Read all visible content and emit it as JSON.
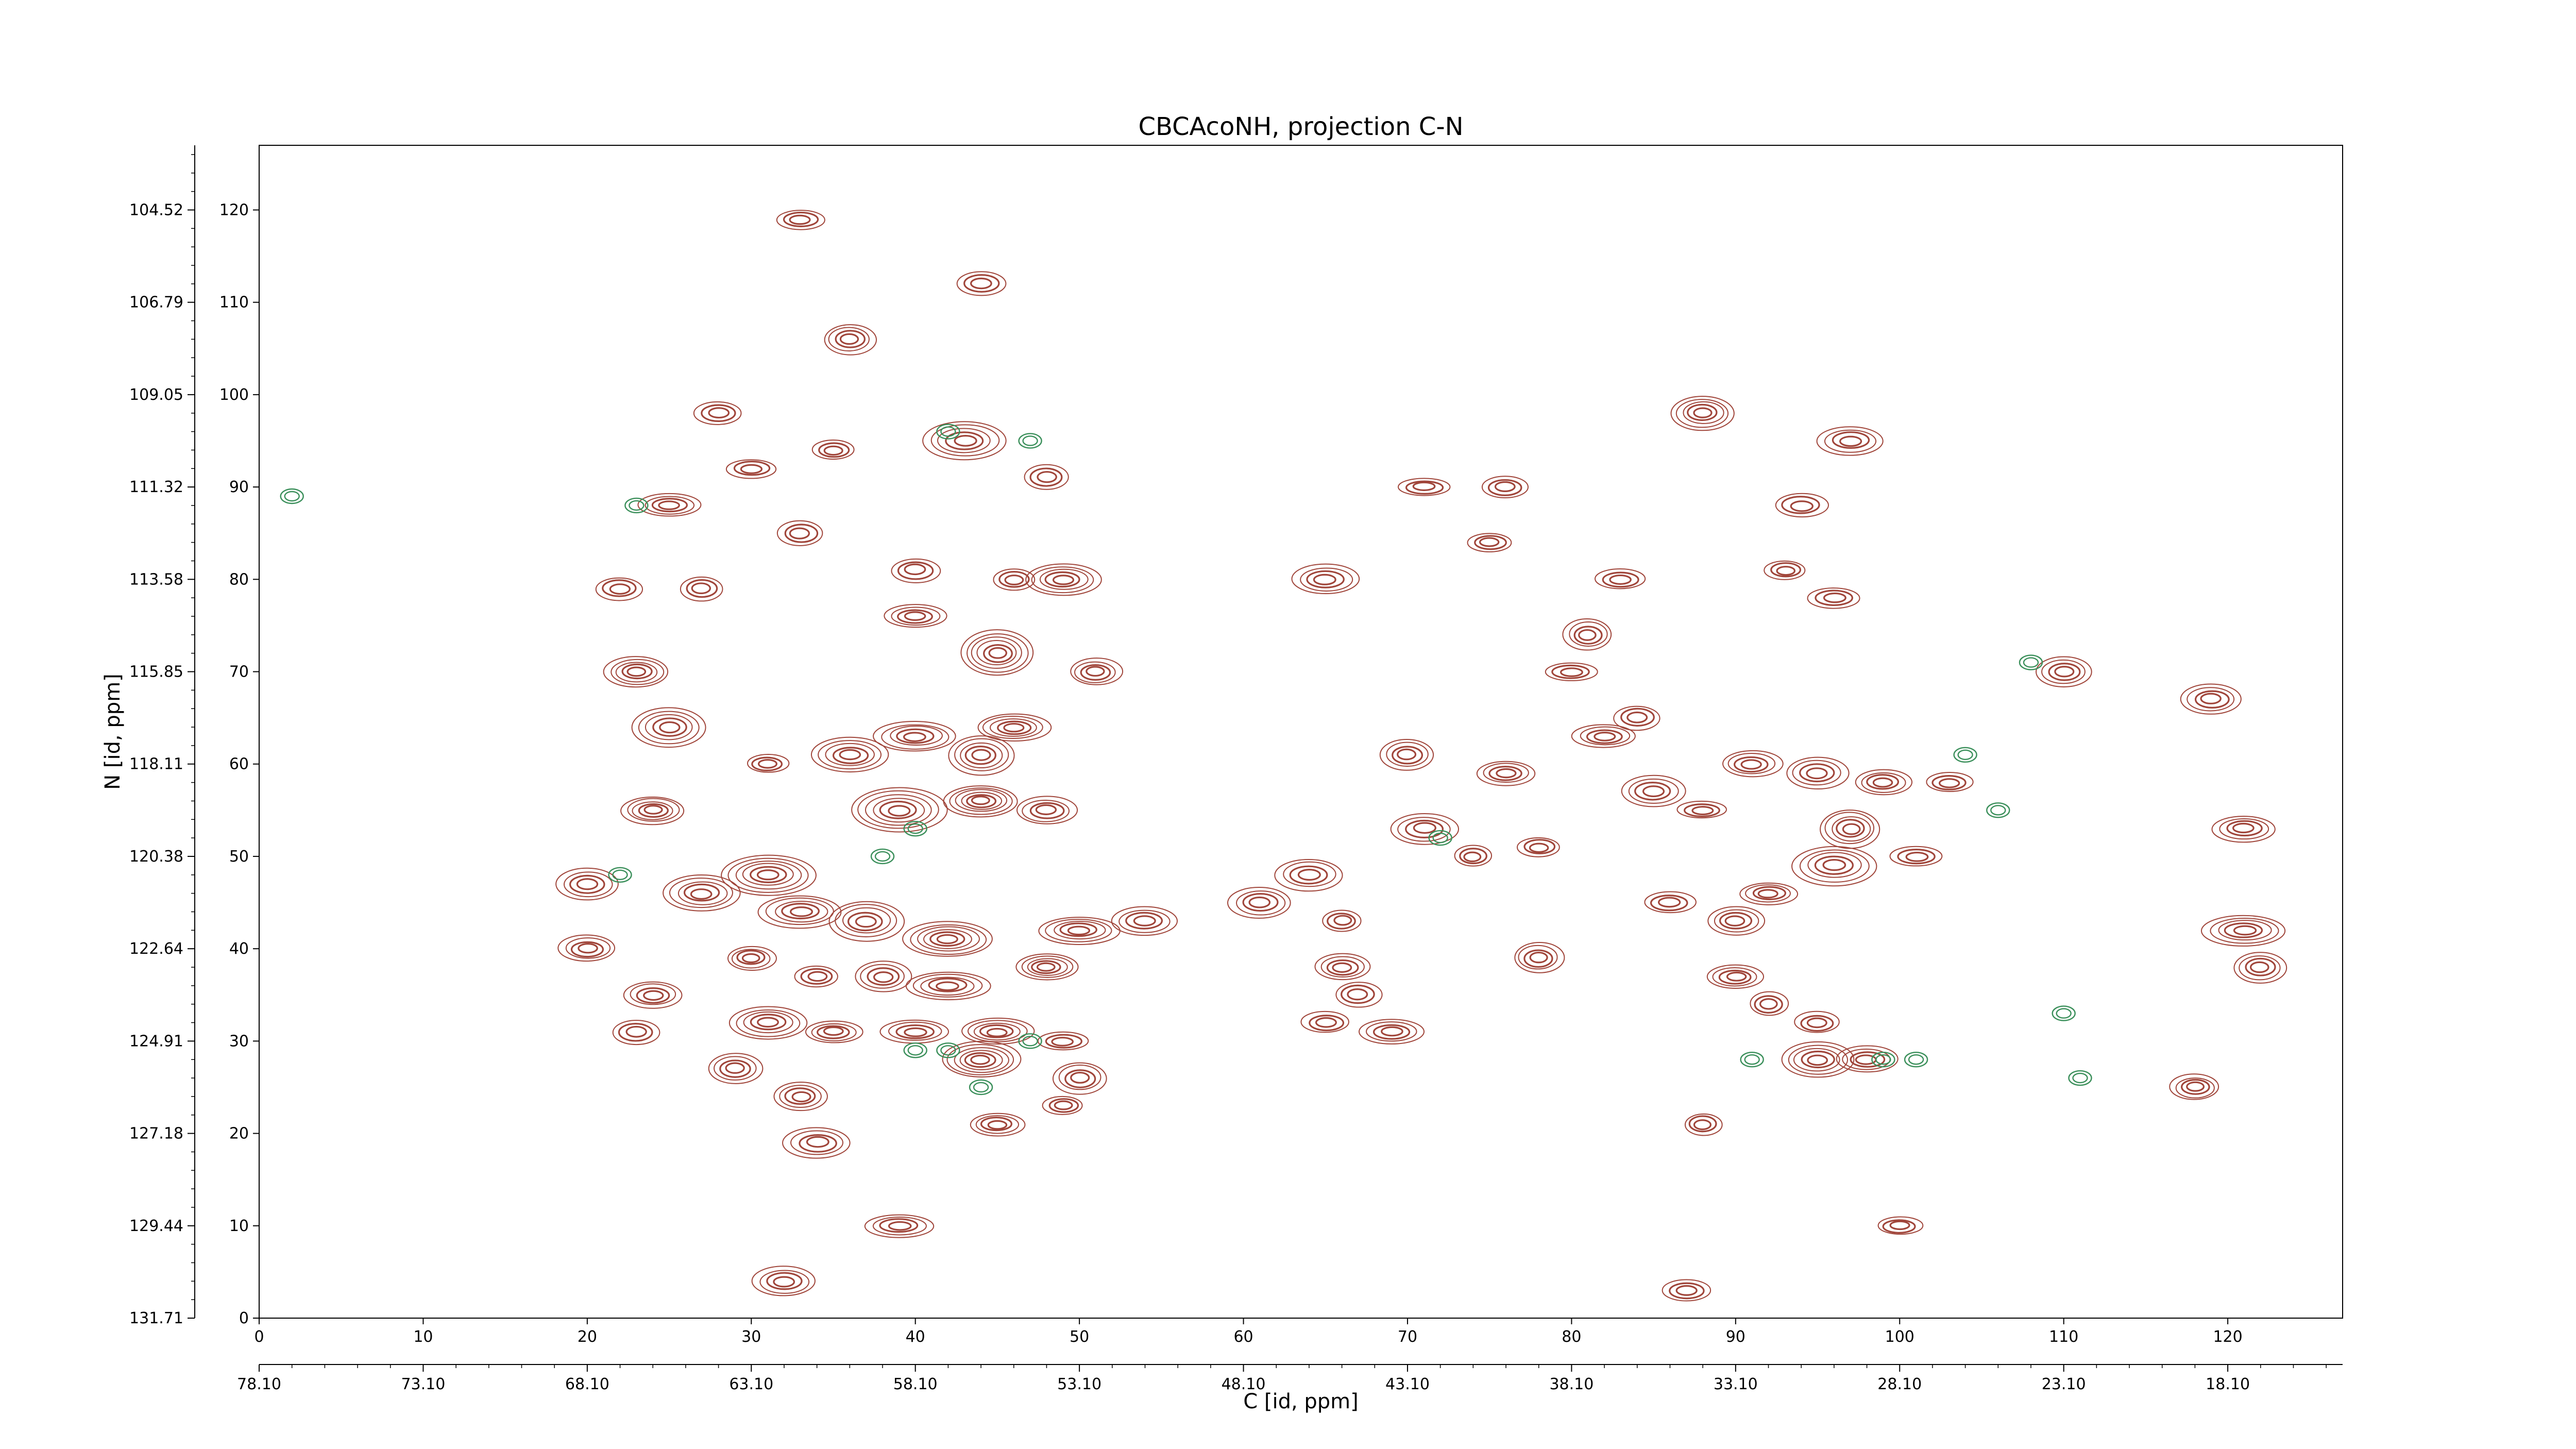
{
  "chart_data": {
    "type": "contour",
    "title": "CBCAcoNH, projection C-N",
    "xlabel": "C [id, ppm]",
    "ylabel": "N [id, ppm]",
    "xlim": [
      0,
      127
    ],
    "ylim": [
      0,
      127
    ],
    "grid": false,
    "legend": "none",
    "x_index_ticks": [
      "0",
      "10",
      "20",
      "30",
      "40",
      "50",
      "60",
      "70",
      "80",
      "90",
      "100",
      "110",
      "120"
    ],
    "x_index_tick_values": [
      0,
      10,
      20,
      30,
      40,
      50,
      60,
      70,
      80,
      90,
      100,
      110,
      120
    ],
    "x_ppm_ticks": [
      "78.10",
      "73.10",
      "68.10",
      "63.10",
      "58.10",
      "53.10",
      "48.10",
      "43.10",
      "38.10",
      "33.10",
      "28.10",
      "23.10",
      "18.10"
    ],
    "x_ppm_tick_values": [
      0,
      10,
      20,
      30,
      40,
      50,
      60,
      70,
      80,
      90,
      100,
      110,
      120
    ],
    "y_index_ticks": [
      "0",
      "10",
      "20",
      "30",
      "40",
      "50",
      "60",
      "70",
      "80",
      "90",
      "100",
      "110",
      "120"
    ],
    "y_index_tick_values": [
      0,
      10,
      20,
      30,
      40,
      50,
      60,
      70,
      80,
      90,
      100,
      110,
      120
    ],
    "y_ppm_ticks": [
      "131.71",
      "129.44",
      "127.18",
      "124.91",
      "122.64",
      "120.38",
      "118.11",
      "115.85",
      "113.58",
      "111.32",
      "109.05",
      "106.79",
      "104.52"
    ],
    "y_ppm_tick_values": [
      0,
      10,
      20,
      30,
      40,
      50,
      60,
      70,
      80,
      90,
      100,
      110,
      120
    ],
    "colors": {
      "positive": "#a0453a",
      "negative": "#3a8f5a",
      "axis": "#000000"
    },
    "positive_peaks": [
      [
        33,
        119,
        3
      ],
      [
        44,
        112,
        3
      ],
      [
        36,
        106,
        4
      ],
      [
        43,
        95,
        5
      ],
      [
        30,
        92,
        3
      ],
      [
        25,
        88,
        4
      ],
      [
        48,
        91,
        3
      ],
      [
        35,
        94,
        3
      ],
      [
        28,
        98,
        3
      ],
      [
        33,
        85,
        3
      ],
      [
        49,
        80,
        5
      ],
      [
        22,
        79,
        3
      ],
      [
        27,
        79,
        3
      ],
      [
        40,
        81,
        3
      ],
      [
        46,
        80,
        3
      ],
      [
        40,
        76,
        4
      ],
      [
        23,
        70,
        5
      ],
      [
        45,
        72,
        6
      ],
      [
        51,
        70,
        4
      ],
      [
        25,
        64,
        5
      ],
      [
        31,
        60,
        3
      ],
      [
        36,
        61,
        5
      ],
      [
        40,
        63,
        5
      ],
      [
        44,
        61,
        5
      ],
      [
        46,
        64,
        5
      ],
      [
        24,
        55,
        5
      ],
      [
        39,
        55,
        6
      ],
      [
        44,
        56,
        6
      ],
      [
        48,
        55,
        4
      ],
      [
        20,
        47,
        4
      ],
      [
        27,
        46,
        5
      ],
      [
        31,
        48,
        6
      ],
      [
        33,
        44,
        5
      ],
      [
        37,
        43,
        5
      ],
      [
        42,
        41,
        6
      ],
      [
        50,
        42,
        5
      ],
      [
        54,
        43,
        4
      ],
      [
        20,
        40,
        4
      ],
      [
        30,
        39,
        4
      ],
      [
        24,
        35,
        4
      ],
      [
        34,
        37,
        3
      ],
      [
        38,
        37,
        4
      ],
      [
        42,
        36,
        5
      ],
      [
        48,
        38,
        5
      ],
      [
        31,
        32,
        5
      ],
      [
        35,
        31,
        4
      ],
      [
        40,
        31,
        4
      ],
      [
        45,
        31,
        5
      ],
      [
        23,
        31,
        3
      ],
      [
        29,
        27,
        4
      ],
      [
        44,
        28,
        6
      ],
      [
        49,
        30,
        3
      ],
      [
        50,
        26,
        4
      ],
      [
        49,
        23,
        3
      ],
      [
        33,
        24,
        4
      ],
      [
        45,
        21,
        4
      ],
      [
        34,
        19,
        4
      ],
      [
        39,
        10,
        4
      ],
      [
        32,
        4,
        4
      ],
      [
        65,
        80,
        4
      ],
      [
        64,
        48,
        4
      ],
      [
        66,
        43,
        3
      ],
      [
        61,
        45,
        4
      ],
      [
        66,
        38,
        4
      ],
      [
        67,
        35,
        3
      ],
      [
        69,
        31,
        4
      ],
      [
        65,
        32,
        3
      ],
      [
        71,
        53,
        4
      ],
      [
        74,
        50,
        3
      ],
      [
        70,
        61,
        4
      ],
      [
        76,
        59,
        4
      ],
      [
        78,
        51,
        3
      ],
      [
        76,
        90,
        3
      ],
      [
        81,
        74,
        4
      ],
      [
        80,
        70,
        3
      ],
      [
        82,
        63,
        4
      ],
      [
        85,
        57,
        4
      ],
      [
        88,
        55,
        3
      ],
      [
        86,
        45,
        3
      ],
      [
        78,
        39,
        4
      ],
      [
        90,
        43,
        4
      ],
      [
        92,
        46,
        4
      ],
      [
        88,
        98,
        5
      ],
      [
        94,
        88,
        3
      ],
      [
        97,
        95,
        4
      ],
      [
        91,
        60,
        4
      ],
      [
        95,
        59,
        4
      ],
      [
        99,
        58,
        4
      ],
      [
        97,
        53,
        5
      ],
      [
        96,
        49,
        5
      ],
      [
        103,
        58,
        3
      ],
      [
        101,
        50,
        3
      ],
      [
        90,
        37,
        4
      ],
      [
        92,
        34,
        3
      ],
      [
        95,
        32,
        3
      ],
      [
        95,
        28,
        5
      ],
      [
        98,
        28,
        4
      ],
      [
        88,
        21,
        3
      ],
      [
        87,
        3,
        3
      ],
      [
        100,
        10,
        3
      ],
      [
        110,
        70,
        4
      ],
      [
        119,
        67,
        4
      ],
      [
        121,
        42,
        5
      ],
      [
        121,
        53,
        4
      ],
      [
        122,
        38,
        4
      ],
      [
        118,
        25,
        4
      ],
      [
        84,
        65,
        3
      ],
      [
        93,
        81,
        3
      ],
      [
        96,
        78,
        3
      ],
      [
        83,
        80,
        3
      ],
      [
        71,
        90,
        3
      ],
      [
        75,
        84,
        3
      ]
    ],
    "negative_peaks": [
      [
        42,
        96
      ],
      [
        47,
        95
      ],
      [
        40,
        29
      ],
      [
        42,
        29
      ],
      [
        47,
        30
      ],
      [
        44,
        25
      ],
      [
        38,
        50
      ],
      [
        40,
        53
      ],
      [
        72,
        52
      ],
      [
        91,
        28
      ],
      [
        99,
        28
      ],
      [
        101,
        28
      ],
      [
        111,
        26
      ],
      [
        2,
        89
      ],
      [
        23,
        88
      ],
      [
        22,
        48
      ],
      [
        104,
        61
      ],
      [
        106,
        55
      ],
      [
        110,
        33
      ],
      [
        108,
        71
      ]
    ]
  }
}
